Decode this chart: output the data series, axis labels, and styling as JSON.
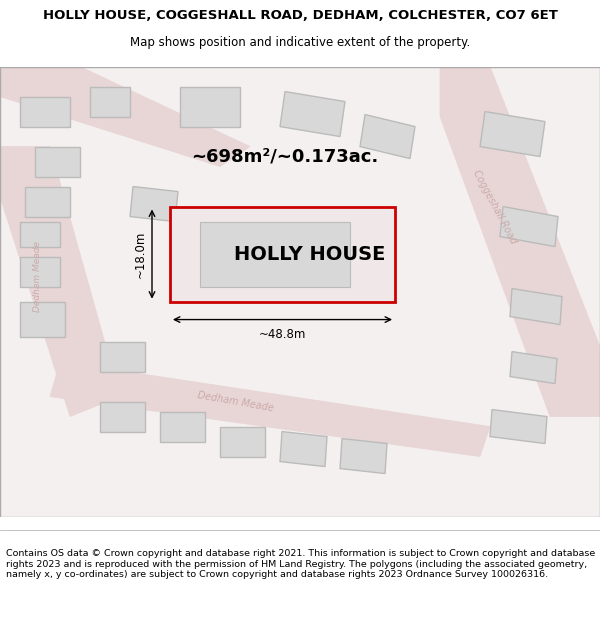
{
  "title": "HOLLY HOUSE, COGGESHALL ROAD, DEDHAM, COLCHESTER, CO7 6ET",
  "subtitle": "Map shows position and indicative extent of the property.",
  "footer": "Contains OS data © Crown copyright and database right 2021. This information is subject to Crown copyright and database rights 2023 and is reproduced with the permission of HM Land Registry. The polygons (including the associated geometry, namely x, y co-ordinates) are subject to Crown copyright and database rights 2023 Ordnance Survey 100026316.",
  "map_bg": "#f5f0f0",
  "map_border": "#cccccc",
  "road_color": "#e8d5d5",
  "building_fill": "#d8d8d8",
  "building_edge": "#bbbbbb",
  "highlight_fill": "#f0e8e8",
  "highlight_edge": "#cc0000",
  "road_label_color": "#bbbbbb",
  "area_text": "~698m²/~0.173ac.",
  "property_label": "HOLLY HOUSE",
  "dim_width": "~48.8m",
  "dim_height": "~18.0m",
  "title_fontsize": 9.5,
  "subtitle_fontsize": 8.5,
  "footer_fontsize": 6.8,
  "label_fontsize": 14,
  "area_fontsize": 13,
  "dim_fontsize": 8.5
}
